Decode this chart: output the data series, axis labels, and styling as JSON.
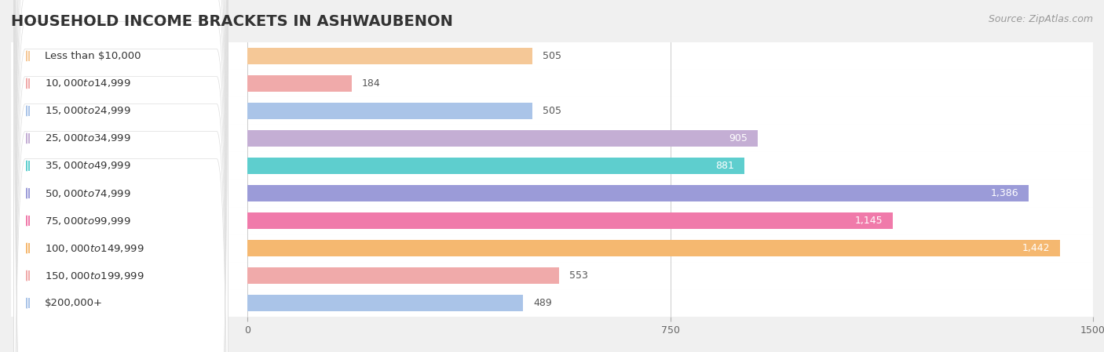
{
  "title": "HOUSEHOLD INCOME BRACKETS IN ASHWAUBENON",
  "source": "Source: ZipAtlas.com",
  "categories": [
    "Less than $10,000",
    "$10,000 to $14,999",
    "$15,000 to $24,999",
    "$25,000 to $34,999",
    "$35,000 to $49,999",
    "$50,000 to $74,999",
    "$75,000 to $99,999",
    "$100,000 to $149,999",
    "$150,000 to $199,999",
    "$200,000+"
  ],
  "values": [
    505,
    184,
    505,
    905,
    881,
    1386,
    1145,
    1442,
    553,
    489
  ],
  "bar_colors": [
    "#f5c897",
    "#f0aaaa",
    "#aac4e8",
    "#c4aed4",
    "#5ecece",
    "#9b9bd8",
    "#f07aaa",
    "#f5b870",
    "#f0aaaa",
    "#aac4e8"
  ],
  "xlim_left": -420,
  "xlim_right": 1500,
  "xticks": [
    0,
    750,
    1500
  ],
  "background_color": "#f0f0f0",
  "row_bg_color": "#ffffff",
  "label_pill_color": "#ffffff",
  "label_inside_threshold": 800,
  "label_color_inside": "#ffffff",
  "label_color_outside": "#555555",
  "title_fontsize": 14,
  "source_fontsize": 9,
  "bar_label_fontsize": 9,
  "category_fontsize": 9.5,
  "bar_height": 0.6,
  "fig_width": 14.06,
  "fig_height": 4.49,
  "dpi": 100
}
